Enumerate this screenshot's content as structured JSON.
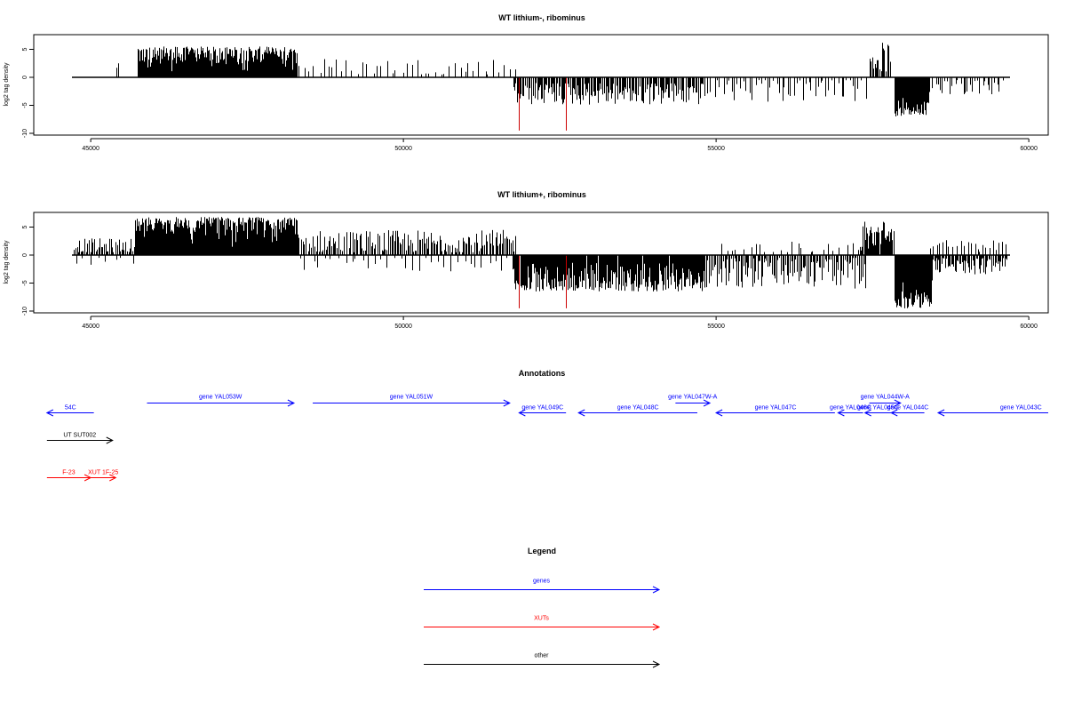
{
  "chart_data": [
    {
      "type": "bar",
      "title": "WT lithium-, ribominus",
      "ylabel": "log2 tag density",
      "xlim": [
        44700,
        59700
      ],
      "ylim": [
        -10,
        7
      ],
      "x_ticks": [
        45000,
        50000,
        55000,
        60000
      ],
      "x_tick_labels": [
        "45000",
        "50000",
        "55000",
        "60000"
      ],
      "y_ticks": [
        5,
        0,
        -5,
        -10
      ],
      "y_tick_labels": [
        "5",
        "0",
        "-5",
        "-10"
      ],
      "baseline": 0,
      "baseline_range": [
        44700,
        59700
      ],
      "colors": {
        "bars": "#000000",
        "highlight": "#cc0000"
      },
      "segments": [
        {
          "x_start": 45400,
          "x_end": 45450,
          "n": 2,
          "sign": 1,
          "min": 1.5,
          "max": 2.5,
          "density": "sparse"
        },
        {
          "x_start": 45750,
          "x_end": 48300,
          "n": 360,
          "sign": 1,
          "min": 1.0,
          "max": 5.5,
          "density": "dense"
        },
        {
          "x_start": 48300,
          "x_end": 51800,
          "n": 45,
          "sign": 1,
          "min": 0.5,
          "max": 3.5,
          "density": "sparse"
        },
        {
          "x_start": 51750,
          "x_end": 54800,
          "n": 170,
          "sign": -1,
          "min": 1.0,
          "max": 5.0,
          "density": "medium"
        },
        {
          "x_start": 54800,
          "x_end": 57400,
          "n": 55,
          "sign": -1,
          "min": 0.5,
          "max": 4.5,
          "density": "sparse"
        },
        {
          "x_start": 57450,
          "x_end": 57800,
          "n": 18,
          "sign": 1,
          "min": 1.0,
          "max": 6.3,
          "density": "medium"
        },
        {
          "x_start": 57850,
          "x_end": 58400,
          "n": 100,
          "sign": -1,
          "min": 2.5,
          "max": 7.0,
          "density": "dense"
        },
        {
          "x_start": 58400,
          "x_end": 59600,
          "n": 30,
          "sign": -1,
          "min": 0.5,
          "max": 3.5,
          "density": "sparse"
        }
      ],
      "highlight_bars": [
        {
          "x": 51840,
          "y": -9.5
        },
        {
          "x": 52600,
          "y": -9.5
        }
      ]
    },
    {
      "type": "bar",
      "title": "WT lithium+, ribominus",
      "ylabel": "log2 tag density",
      "xlim": [
        44700,
        59700
      ],
      "ylim": [
        -10,
        7
      ],
      "x_ticks": [
        45000,
        50000,
        55000,
        60000
      ],
      "x_tick_labels": [
        "45000",
        "50000",
        "55000",
        "60000"
      ],
      "y_ticks": [
        5,
        0,
        -5,
        -10
      ],
      "y_tick_labels": [
        "5",
        "0",
        "-5",
        "-10"
      ],
      "baseline": 0,
      "baseline_range": [
        44700,
        59700
      ],
      "colors": {
        "bars": "#000000",
        "highlight": "#cc0000"
      },
      "segments": [
        {
          "x_start": 44720,
          "x_end": 45700,
          "n": 45,
          "sign": 1,
          "min": 0.5,
          "max": 3.0,
          "density": "medium"
        },
        {
          "x_start": 44720,
          "x_end": 45700,
          "n": 8,
          "sign": -1,
          "min": 0.5,
          "max": 1.8,
          "density": "sparse"
        },
        {
          "x_start": 45700,
          "x_end": 48300,
          "n": 480,
          "sign": 1,
          "min": 1.0,
          "max": 6.8,
          "density": "dense"
        },
        {
          "x_start": 48300,
          "x_end": 51800,
          "n": 150,
          "sign": 1,
          "min": 0.5,
          "max": 4.5,
          "density": "medium"
        },
        {
          "x_start": 48300,
          "x_end": 51800,
          "n": 35,
          "sign": -1,
          "min": 0.5,
          "max": 3.0,
          "density": "sparse"
        },
        {
          "x_start": 51750,
          "x_end": 54800,
          "n": 330,
          "sign": -1,
          "min": 1.0,
          "max": 6.5,
          "density": "dense"
        },
        {
          "x_start": 54800,
          "x_end": 57400,
          "n": 120,
          "sign": -1,
          "min": 0.5,
          "max": 6.0,
          "density": "medium"
        },
        {
          "x_start": 55000,
          "x_end": 57400,
          "n": 25,
          "sign": 1,
          "min": 0.5,
          "max": 2.5,
          "density": "sparse"
        },
        {
          "x_start": 57300,
          "x_end": 57850,
          "n": 40,
          "sign": 1,
          "min": 1.0,
          "max": 6.3,
          "density": "medium"
        },
        {
          "x_start": 57850,
          "x_end": 58450,
          "n": 160,
          "sign": -1,
          "min": 2.5,
          "max": 9.5,
          "density": "dense"
        },
        {
          "x_start": 58400,
          "x_end": 59650,
          "n": 70,
          "sign": -1,
          "min": 0.5,
          "max": 3.5,
          "density": "medium"
        },
        {
          "x_start": 58400,
          "x_end": 59650,
          "n": 25,
          "sign": 1,
          "min": 0.5,
          "max": 2.8,
          "density": "sparse"
        }
      ],
      "highlight_bars": [
        {
          "x": 51840,
          "y": -9.5
        },
        {
          "x": 52600,
          "y": -9.5
        }
      ]
    }
  ],
  "annotations": {
    "title": "Annotations",
    "features": [
      {
        "label": "54C",
        "start": 44300,
        "end": 45050,
        "strand": "-",
        "color": "blue",
        "row": 1
      },
      {
        "label": "gene YAL053W",
        "start": 45900,
        "end": 48250,
        "strand": "+",
        "color": "blue",
        "row": 0
      },
      {
        "label": "gene YAL051W",
        "start": 48550,
        "end": 51700,
        "strand": "+",
        "color": "blue",
        "row": 0
      },
      {
        "label": "gene YAL049C",
        "start": 51850,
        "end": 52600,
        "strand": "-",
        "color": "blue",
        "row": 1
      },
      {
        "label": "gene YAL048C",
        "start": 52800,
        "end": 54700,
        "strand": "-",
        "color": "blue",
        "row": 1
      },
      {
        "label": "gene YAL047W-A",
        "start": 54350,
        "end": 54900,
        "strand": "+",
        "color": "blue",
        "row": 0
      },
      {
        "label": "gene YAL047C",
        "start": 55000,
        "end": 56900,
        "strand": "-",
        "color": "blue",
        "row": 1
      },
      {
        "label": "gene YAL046C",
        "start": 56950,
        "end": 57350,
        "strand": "-",
        "color": "blue",
        "row": 1
      },
      {
        "label": "gene YAL045C",
        "start": 57380,
        "end": 57800,
        "strand": "-",
        "color": "blue",
        "row": 1
      },
      {
        "label": "gene YAL044W-A",
        "start": 57450,
        "end": 57950,
        "strand": "+",
        "color": "blue",
        "row": 0
      },
      {
        "label": "gene YAL044C",
        "start": 57800,
        "end": 58330,
        "strand": "-",
        "color": "blue",
        "row": 1
      },
      {
        "label": "gene YAL043C",
        "start": 58550,
        "end": 61200,
        "strand": "-",
        "color": "blue",
        "row": 1
      },
      {
        "label": "UT SUT002",
        "start": 44300,
        "end": 45350,
        "strand": "+",
        "color": "black",
        "row": 2
      },
      {
        "label": "F-23",
        "start": 44300,
        "end": 45000,
        "strand": "+",
        "color": "red",
        "row": 3
      },
      {
        "label": "XUT 1F-25",
        "start": 45000,
        "end": 45400,
        "strand": "+",
        "color": "red",
        "row": 3
      }
    ]
  },
  "legend": {
    "title": "Legend",
    "items": [
      {
        "label": "genes",
        "color": "#0000ff"
      },
      {
        "label": "XUTs",
        "color": "#ff0000"
      },
      {
        "label": "other",
        "color": "#000000"
      }
    ]
  }
}
